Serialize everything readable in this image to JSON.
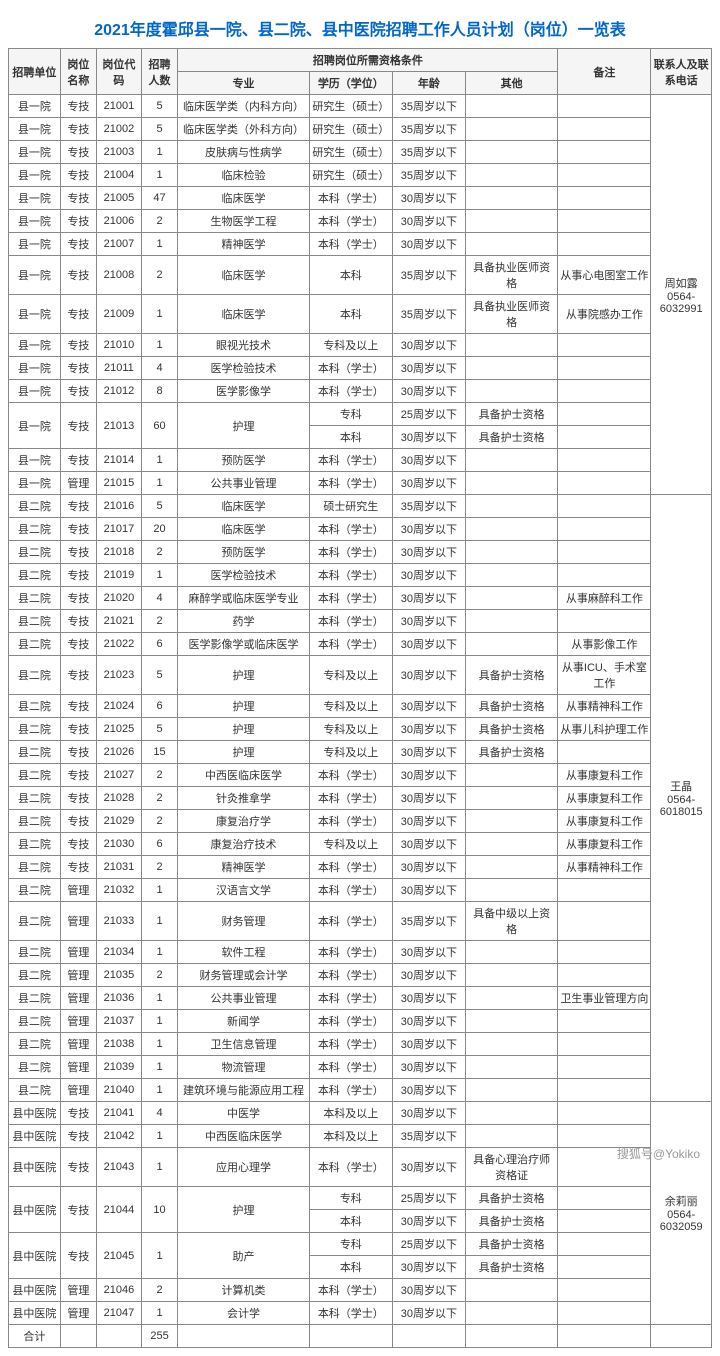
{
  "title": "2021年度霍邱县一院、县二院、县中医院招聘工作人员计划（岗位）一览表",
  "headers": {
    "unit": "招聘单位",
    "jobName": "岗位名称",
    "code": "岗位代码",
    "count": "招聘人数",
    "requirements": "招聘岗位所需资格条件",
    "major": "专业",
    "edu": "学历（学位）",
    "age": "年龄",
    "other": "其他",
    "note": "备注",
    "contact": "联系人及联系电话"
  },
  "contacts": {
    "c1": "周如露\n0564-6032991",
    "c2": "王晶\n0564-6018015",
    "c3": "余莉丽\n0564-6032059"
  },
  "totalLabel": "合计",
  "totalCount": "255",
  "watermark": "搜狐号@Yokiko",
  "rows": [
    {
      "unit": "县一院",
      "name": "专技",
      "code": "21001",
      "count": "5",
      "major": "临床医学类（内科方向）",
      "edu": "研究生（硕士）",
      "age": "35周岁以下",
      "other": "",
      "note": ""
    },
    {
      "unit": "县一院",
      "name": "专技",
      "code": "21002",
      "count": "5",
      "major": "临床医学类（外科方向）",
      "edu": "研究生（硕士）",
      "age": "35周岁以下",
      "other": "",
      "note": ""
    },
    {
      "unit": "县一院",
      "name": "专技",
      "code": "21003",
      "count": "1",
      "major": "皮肤病与性病学",
      "edu": "研究生（硕士）",
      "age": "35周岁以下",
      "other": "",
      "note": ""
    },
    {
      "unit": "县一院",
      "name": "专技",
      "code": "21004",
      "count": "1",
      "major": "临床检验",
      "edu": "研究生（硕士）",
      "age": "35周岁以下",
      "other": "",
      "note": ""
    },
    {
      "unit": "县一院",
      "name": "专技",
      "code": "21005",
      "count": "47",
      "major": "临床医学",
      "edu": "本科（学士）",
      "age": "30周岁以下",
      "other": "",
      "note": ""
    },
    {
      "unit": "县一院",
      "name": "专技",
      "code": "21006",
      "count": "2",
      "major": "生物医学工程",
      "edu": "本科（学士）",
      "age": "30周岁以下",
      "other": "",
      "note": ""
    },
    {
      "unit": "县一院",
      "name": "专技",
      "code": "21007",
      "count": "1",
      "major": "精神医学",
      "edu": "本科（学士）",
      "age": "30周岁以下",
      "other": "",
      "note": ""
    },
    {
      "unit": "县一院",
      "name": "专技",
      "code": "21008",
      "count": "2",
      "major": "临床医学",
      "edu": "本科",
      "age": "35周岁以下",
      "other": "具备执业医师资格",
      "note": "从事心电图室工作"
    },
    {
      "unit": "县一院",
      "name": "专技",
      "code": "21009",
      "count": "1",
      "major": "临床医学",
      "edu": "本科",
      "age": "35周岁以下",
      "other": "具备执业医师资格",
      "note": "从事院感办工作"
    },
    {
      "unit": "县一院",
      "name": "专技",
      "code": "21010",
      "count": "1",
      "major": "眼视光技术",
      "edu": "专科及以上",
      "age": "30周岁以下",
      "other": "",
      "note": ""
    },
    {
      "unit": "县一院",
      "name": "专技",
      "code": "21011",
      "count": "4",
      "major": "医学检验技术",
      "edu": "本科（学士）",
      "age": "30周岁以下",
      "other": "",
      "note": ""
    },
    {
      "unit": "县一院",
      "name": "专技",
      "code": "21012",
      "count": "8",
      "major": "医学影像学",
      "edu": "本科（学士）",
      "age": "30周岁以下",
      "other": "",
      "note": ""
    },
    {
      "unit": "县一院",
      "name": "专技",
      "code": "21013",
      "count": "60",
      "major": "护理",
      "edu": "专科",
      "age": "25周岁以下",
      "other": "具备护士资格",
      "note": "",
      "span": 2
    },
    {
      "edu": "本科",
      "age": "30周岁以下",
      "other": "具备护士资格",
      "note": "",
      "sub": true
    },
    {
      "unit": "县一院",
      "name": "专技",
      "code": "21014",
      "count": "1",
      "major": "预防医学",
      "edu": "本科（学士）",
      "age": "30周岁以下",
      "other": "",
      "note": ""
    },
    {
      "unit": "县一院",
      "name": "管理",
      "code": "21015",
      "count": "1",
      "major": "公共事业管理",
      "edu": "本科（学士）",
      "age": "30周岁以下",
      "other": "",
      "note": ""
    },
    {
      "unit": "县二院",
      "name": "专技",
      "code": "21016",
      "count": "5",
      "major": "临床医学",
      "edu": "硕士研究生",
      "age": "35周岁以下",
      "other": "",
      "note": ""
    },
    {
      "unit": "县二院",
      "name": "专技",
      "code": "21017",
      "count": "20",
      "major": "临床医学",
      "edu": "本科（学士）",
      "age": "30周岁以下",
      "other": "",
      "note": ""
    },
    {
      "unit": "县二院",
      "name": "专技",
      "code": "21018",
      "count": "2",
      "major": "预防医学",
      "edu": "本科（学士）",
      "age": "30周岁以下",
      "other": "",
      "note": ""
    },
    {
      "unit": "县二院",
      "name": "专技",
      "code": "21019",
      "count": "1",
      "major": "医学检验技术",
      "edu": "本科（学士）",
      "age": "30周岁以下",
      "other": "",
      "note": ""
    },
    {
      "unit": "县二院",
      "name": "专技",
      "code": "21020",
      "count": "4",
      "major": "麻醉学或临床医学专业",
      "edu": "本科（学士）",
      "age": "30周岁以下",
      "other": "",
      "note": "从事麻醉科工作"
    },
    {
      "unit": "县二院",
      "name": "专技",
      "code": "21021",
      "count": "2",
      "major": "药学",
      "edu": "本科（学士）",
      "age": "30周岁以下",
      "other": "",
      "note": ""
    },
    {
      "unit": "县二院",
      "name": "专技",
      "code": "21022",
      "count": "6",
      "major": "医学影像学或临床医学",
      "edu": "本科（学士）",
      "age": "30周岁以下",
      "other": "",
      "note": "从事影像工作"
    },
    {
      "unit": "县二院",
      "name": "专技",
      "code": "21023",
      "count": "5",
      "major": "护理",
      "edu": "专科及以上",
      "age": "30周岁以下",
      "other": "具备护士资格",
      "note": "从事ICU、手术室工作"
    },
    {
      "unit": "县二院",
      "name": "专技",
      "code": "21024",
      "count": "6",
      "major": "护理",
      "edu": "专科及以上",
      "age": "30周岁以下",
      "other": "具备护士资格",
      "note": "从事精神科工作"
    },
    {
      "unit": "县二院",
      "name": "专技",
      "code": "21025",
      "count": "5",
      "major": "护理",
      "edu": "专科及以上",
      "age": "30周岁以下",
      "other": "具备护士资格",
      "note": "从事儿科护理工作"
    },
    {
      "unit": "县二院",
      "name": "专技",
      "code": "21026",
      "count": "15",
      "major": "护理",
      "edu": "专科及以上",
      "age": "30周岁以下",
      "other": "具备护士资格",
      "note": ""
    },
    {
      "unit": "县二院",
      "name": "专技",
      "code": "21027",
      "count": "2",
      "major": "中西医临床医学",
      "edu": "本科（学士）",
      "age": "30周岁以下",
      "other": "",
      "note": "从事康复科工作"
    },
    {
      "unit": "县二院",
      "name": "专技",
      "code": "21028",
      "count": "2",
      "major": "针灸推拿学",
      "edu": "本科（学士）",
      "age": "30周岁以下",
      "other": "",
      "note": "从事康复科工作"
    },
    {
      "unit": "县二院",
      "name": "专技",
      "code": "21029",
      "count": "2",
      "major": "康复治疗学",
      "edu": "本科（学士）",
      "age": "30周岁以下",
      "other": "",
      "note": "从事康复科工作"
    },
    {
      "unit": "县二院",
      "name": "专技",
      "code": "21030",
      "count": "6",
      "major": "康复治疗技术",
      "edu": "专科及以上",
      "age": "30周岁以下",
      "other": "",
      "note": "从事康复科工作"
    },
    {
      "unit": "县二院",
      "name": "专技",
      "code": "21031",
      "count": "2",
      "major": "精神医学",
      "edu": "本科（学士）",
      "age": "30周岁以下",
      "other": "",
      "note": "从事精神科工作"
    },
    {
      "unit": "县二院",
      "name": "管理",
      "code": "21032",
      "count": "1",
      "major": "汉语言文学",
      "edu": "本科（学士）",
      "age": "30周岁以下",
      "other": "",
      "note": ""
    },
    {
      "unit": "县二院",
      "name": "管理",
      "code": "21033",
      "count": "1",
      "major": "财务管理",
      "edu": "本科（学士）",
      "age": "35周岁以下",
      "other": "具备中级以上资格",
      "note": ""
    },
    {
      "unit": "县二院",
      "name": "管理",
      "code": "21034",
      "count": "1",
      "major": "软件工程",
      "edu": "本科（学士）",
      "age": "30周岁以下",
      "other": "",
      "note": ""
    },
    {
      "unit": "县二院",
      "name": "管理",
      "code": "21035",
      "count": "2",
      "major": "财务管理或会计学",
      "edu": "本科（学士）",
      "age": "30周岁以下",
      "other": "",
      "note": ""
    },
    {
      "unit": "县二院",
      "name": "管理",
      "code": "21036",
      "count": "1",
      "major": "公共事业管理",
      "edu": "本科（学士）",
      "age": "30周岁以下",
      "other": "",
      "note": "卫生事业管理方向"
    },
    {
      "unit": "县二院",
      "name": "管理",
      "code": "21037",
      "count": "1",
      "major": "新闻学",
      "edu": "本科（学士）",
      "age": "30周岁以下",
      "other": "",
      "note": ""
    },
    {
      "unit": "县二院",
      "name": "管理",
      "code": "21038",
      "count": "1",
      "major": "卫生信息管理",
      "edu": "本科（学士）",
      "age": "30周岁以下",
      "other": "",
      "note": ""
    },
    {
      "unit": "县二院",
      "name": "管理",
      "code": "21039",
      "count": "1",
      "major": "物流管理",
      "edu": "本科（学士）",
      "age": "30周岁以下",
      "other": "",
      "note": ""
    },
    {
      "unit": "县二院",
      "name": "管理",
      "code": "21040",
      "count": "1",
      "major": "建筑环境与能源应用工程",
      "edu": "本科（学士）",
      "age": "30周岁以下",
      "other": "",
      "note": ""
    },
    {
      "unit": "县中医院",
      "name": "专技",
      "code": "21041",
      "count": "4",
      "major": "中医学",
      "edu": "本科及以上",
      "age": "30周岁以下",
      "other": "",
      "note": ""
    },
    {
      "unit": "县中医院",
      "name": "专技",
      "code": "21042",
      "count": "1",
      "major": "中西医临床医学",
      "edu": "本科及以上",
      "age": "35周岁以下",
      "other": "",
      "note": ""
    },
    {
      "unit": "县中医院",
      "name": "专技",
      "code": "21043",
      "count": "1",
      "major": "应用心理学",
      "edu": "本科（学士）",
      "age": "30周岁以下",
      "other": "具备心理治疗师资格证",
      "note": ""
    },
    {
      "unit": "县中医院",
      "name": "专技",
      "code": "21044",
      "count": "10",
      "major": "护理",
      "edu": "专科",
      "age": "25周岁以下",
      "other": "具备护士资格",
      "note": "",
      "span": 2
    },
    {
      "edu": "本科",
      "age": "30周岁以下",
      "other": "具备护士资格",
      "note": "",
      "sub": true
    },
    {
      "unit": "县中医院",
      "name": "专技",
      "code": "21045",
      "count": "1",
      "major": "助产",
      "edu": "专科",
      "age": "25周岁以下",
      "other": "具备护士资格",
      "note": "",
      "span": 2
    },
    {
      "edu": "本科",
      "age": "30周岁以下",
      "other": "具备护士资格",
      "note": "",
      "sub": true
    },
    {
      "unit": "县中医院",
      "name": "管理",
      "code": "21046",
      "count": "2",
      "major": "计算机类",
      "edu": "本科（学士）",
      "age": "30周岁以下",
      "other": "",
      "note": ""
    },
    {
      "unit": "县中医院",
      "name": "管理",
      "code": "21047",
      "count": "1",
      "major": "会计学",
      "edu": "本科（学士）",
      "age": "30周岁以下",
      "other": "",
      "note": ""
    }
  ]
}
